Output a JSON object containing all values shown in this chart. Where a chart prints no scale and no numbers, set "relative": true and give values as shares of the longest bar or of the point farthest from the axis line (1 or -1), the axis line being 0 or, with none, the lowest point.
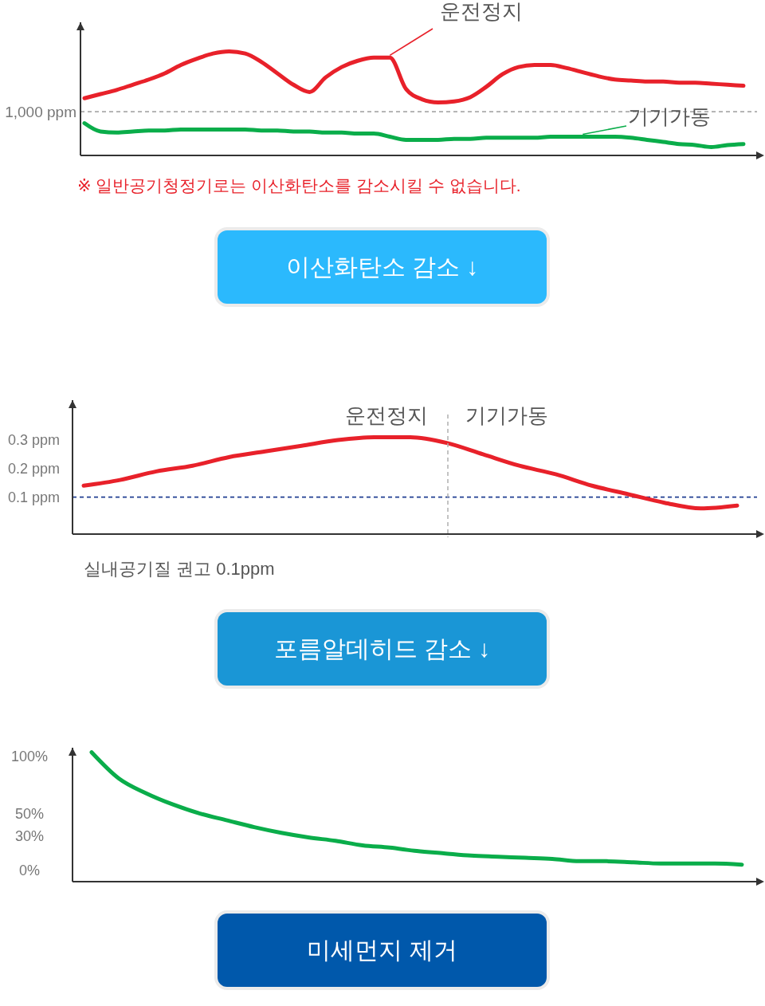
{
  "chart_data": [
    {
      "type": "line",
      "title": "이산화탄소 감소 ↓",
      "relative": true,
      "tick_labels": false,
      "categories": [
        null,
        null,
        null,
        null,
        null,
        null,
        null,
        null,
        null,
        null,
        null,
        null,
        null,
        null,
        null,
        null,
        null,
        null,
        null,
        null,
        null,
        null,
        null,
        null,
        null,
        null,
        null,
        null,
        null,
        null,
        null,
        null,
        null,
        null,
        null,
        null,
        null,
        null,
        null,
        null,
        null,
        null
      ],
      "series": [
        {
          "name": "운전정지",
          "color": "#e8212a",
          "values": [
            0.55,
            0.59,
            0.63,
            0.68,
            0.73,
            0.79,
            0.87,
            0.93,
            0.98,
            1,
            0.98,
            0.9,
            0.79,
            0.68,
            0.61,
            0.75,
            0.85,
            0.91,
            0.94,
            0.94,
            0.64,
            0.54,
            0.51,
            0.52,
            0.56,
            0.66,
            0.78,
            0.85,
            0.87,
            0.87,
            0.84,
            0.8,
            0.76,
            0.73,
            0.72,
            0.71,
            0.71,
            0.7,
            0.7,
            0.69,
            0.68,
            0.67
          ]
        },
        {
          "name": "기기가동",
          "color": "#0aad4a",
          "values": [
            0.31,
            0.23,
            0.22,
            0.23,
            0.24,
            0.24,
            0.25,
            0.25,
            0.25,
            0.25,
            0.25,
            0.24,
            0.24,
            0.23,
            0.23,
            0.22,
            0.22,
            0.21,
            0.21,
            0.18,
            0.15,
            0.15,
            0.15,
            0.16,
            0.16,
            0.17,
            0.17,
            0.17,
            0.17,
            0.18,
            0.18,
            0.18,
            0.18,
            0.18,
            0.17,
            0.15,
            0.13,
            0.11,
            0.1,
            0.08,
            0.1,
            0.11
          ]
        }
      ],
      "ref_lines": [
        {
          "axis": "y",
          "value": 0.42,
          "label": "1,000 ppm",
          "color": "#aaaaaa",
          "line_style": "dashed"
        }
      ],
      "annotations": [
        "※ 일반공기청정기로는 이산화탄소를 감소시킬 수 없습니다."
      ]
    },
    {
      "type": "line",
      "title": "포름알데히드 감소 ↓",
      "tick_labels": "y",
      "categories": [
        null,
        null,
        null,
        null,
        null,
        null,
        null,
        null,
        null,
        null,
        null,
        null,
        null,
        null,
        null,
        null,
        null,
        null,
        null
      ],
      "values": [
        0.14,
        0.16,
        0.19,
        0.21,
        0.24,
        0.26,
        0.28,
        0.3,
        0.31,
        0.31,
        0.29,
        0.25,
        0.21,
        0.18,
        0.14,
        0.11,
        0.08,
        0.06,
        0.07
      ],
      "color": "#e8212a",
      "ylim": [
        -0.03,
        0.44
      ],
      "yticks": [
        {
          "value": 0.1,
          "label": "0.1 ppm"
        },
        {
          "value": 0.2,
          "label": "0.2 ppm"
        },
        {
          "value": 0.3,
          "label": "0.3 ppm"
        }
      ],
      "ref_lines": [
        {
          "axis": "y",
          "value": 0.1,
          "color": "#213f92",
          "line_style": "dashed"
        }
      ],
      "annotations": [
        "운전정지",
        "기기가동",
        "실내공기질 권고 0.1ppm"
      ]
    },
    {
      "type": "line",
      "title": "미세먼지 제거",
      "tick_labels": "y",
      "categories": [
        null,
        null,
        null,
        null,
        null,
        null,
        null,
        null,
        null,
        null,
        null,
        null,
        null,
        null,
        null,
        null,
        null,
        null,
        null,
        null,
        null,
        null,
        null,
        null,
        null
      ],
      "values": [
        104,
        81,
        68,
        58,
        50,
        44,
        38,
        33,
        29,
        26,
        22,
        20,
        17,
        15,
        13,
        12,
        11,
        10,
        8,
        8,
        7,
        6,
        6,
        6,
        5
      ],
      "color": "#0aad4a",
      "ylim": [
        -10,
        108
      ],
      "yticks": [
        {
          "value": 0,
          "label": "0%"
        },
        {
          "value": 30,
          "label": "30%"
        },
        {
          "value": 50,
          "label": "50%"
        },
        {
          "value": 100,
          "label": "100%"
        }
      ]
    }
  ]
}
